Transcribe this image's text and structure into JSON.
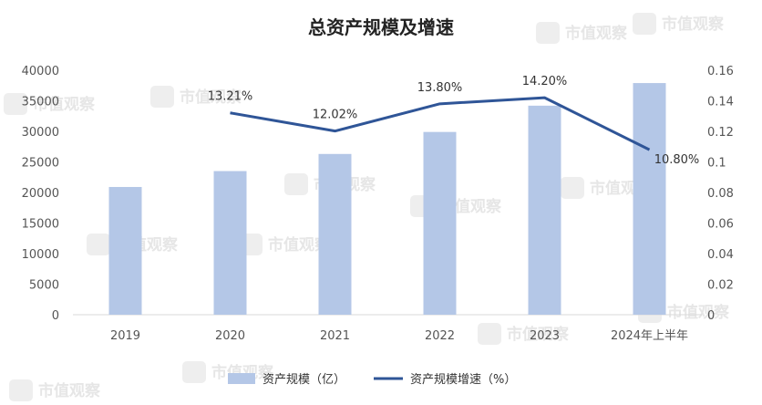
{
  "chart_data": {
    "type": "bar",
    "title": "总资产规模及增速",
    "categories": [
      "2019",
      "2020",
      "2021",
      "2022",
      "2023",
      "2024年上半年"
    ],
    "series": [
      {
        "name": "资产规模（亿）",
        "type": "bar",
        "axis": "left",
        "color": "#b4c7e7",
        "values": [
          20900,
          23500,
          26300,
          29900,
          34200,
          37900
        ]
      },
      {
        "name": "资产规模增速（%）",
        "type": "line",
        "axis": "right",
        "color": "#2f5597",
        "values": [
          null,
          0.1321,
          0.1202,
          0.138,
          0.142,
          0.108
        ],
        "labels": [
          "",
          "13.21%",
          "12.02%",
          "13.80%",
          "14.20%",
          "10.80%"
        ]
      }
    ],
    "y_left": {
      "min": 0,
      "max": 40000,
      "ticks": [
        "0",
        "5000",
        "10000",
        "15000",
        "20000",
        "25000",
        "30000",
        "35000",
        "40000"
      ]
    },
    "y_right": {
      "min": 0,
      "max": 0.16,
      "ticks": [
        "0",
        "0.02",
        "0.04",
        "0.06",
        "0.08",
        "0.1",
        "0.12",
        "0.14",
        "0.16"
      ]
    },
    "grid": false,
    "legend_position": "bottom"
  },
  "watermark": {
    "text": "市值观察",
    "icon": "watermark-logo-icon"
  }
}
